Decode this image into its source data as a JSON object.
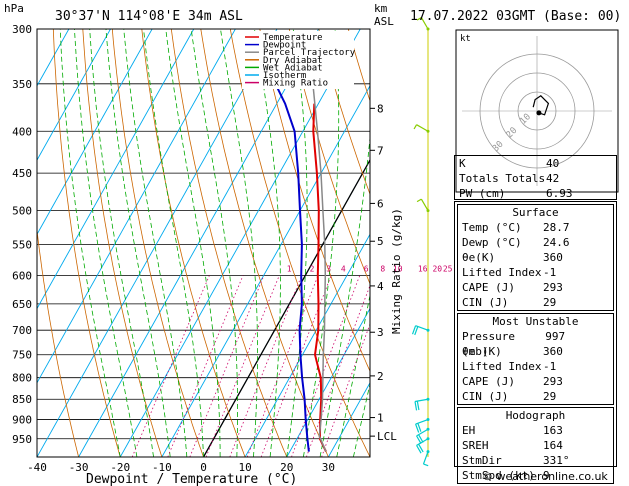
{
  "header": {
    "hpa_label": "hPa",
    "location": "30°37'N  114°08'E  34m  ASL",
    "km_label": "km",
    "asl_label": "ASL",
    "datetime": "17.07.2022  03GMT  (Base: 00)",
    "mixing_ratio_label": "Mixing Ratio (g/kg)"
  },
  "chart_data": {
    "type": "skew-t",
    "xlabel": "Dewpoint / Temperature (°C)",
    "ylabel": "hPa",
    "x_ticks": [
      -40,
      -30,
      -20,
      -10,
      0,
      10,
      20,
      30
    ],
    "xlim": [
      -40,
      40
    ],
    "pressure_levels": [
      300,
      350,
      400,
      450,
      500,
      550,
      600,
      650,
      700,
      750,
      800,
      850,
      900,
      950
    ],
    "ylim": [
      300,
      1000
    ],
    "km_ticks": [
      {
        "label": "8",
        "p": 375
      },
      {
        "label": "7",
        "p": 422
      },
      {
        "label": "6",
        "p": 490
      },
      {
        "label": "5",
        "p": 545
      },
      {
        "label": "4",
        "p": 618
      },
      {
        "label": "3",
        "p": 704
      },
      {
        "label": "2",
        "p": 796
      },
      {
        "label": "1",
        "p": 895
      },
      {
        "label": "LCL",
        "p": 943
      }
    ],
    "mixing_ratio_labels": [
      {
        "label": "1",
        "t": -3.5
      },
      {
        "label": "2",
        "t": 2
      },
      {
        "label": "3",
        "t": 6
      },
      {
        "label": "4",
        "t": 9.5
      },
      {
        "label": "6",
        "t": 15
      },
      {
        "label": "8",
        "t": 19
      },
      {
        "label": "10",
        "t": 22
      },
      {
        "label": "16",
        "t": 28
      },
      {
        "label": "20",
        "t": 31.5
      },
      {
        "label": "25",
        "t": 34
      }
    ],
    "legend": [
      {
        "label": "Temperature",
        "color": "#e00000"
      },
      {
        "label": "Dewpoint",
        "color": "#0000cc"
      },
      {
        "label": "Parcel Trajectory",
        "color": "#888888"
      },
      {
        "label": "Dry Adiabat",
        "color": "#cc6600"
      },
      {
        "label": "Wet Adiabat",
        "color": "#00aa00"
      },
      {
        "label": "Isotherm",
        "color": "#00aaee"
      },
      {
        "label": "Mixing Ratio",
        "color": "#cc0066"
      }
    ],
    "series": [
      {
        "name": "Temperature",
        "color": "#e00000",
        "points": [
          {
            "p": 985,
            "t": 28.7
          },
          {
            "p": 950,
            "t": 25.5
          },
          {
            "p": 900,
            "t": 23
          },
          {
            "p": 850,
            "t": 20.5
          },
          {
            "p": 800,
            "t": 17.5
          },
          {
            "p": 750,
            "t": 13
          },
          {
            "p": 700,
            "t": 10.5
          },
          {
            "p": 650,
            "t": 7
          },
          {
            "p": 600,
            "t": 3
          },
          {
            "p": 550,
            "t": -1
          },
          {
            "p": 500,
            "t": -5.5
          },
          {
            "p": 450,
            "t": -11
          },
          {
            "p": 400,
            "t": -17.5
          },
          {
            "p": 370,
            "t": -21
          }
        ]
      },
      {
        "name": "Dewpoint",
        "color": "#0000cc",
        "points": [
          {
            "p": 985,
            "t": 24.6
          },
          {
            "p": 950,
            "t": 22.5
          },
          {
            "p": 900,
            "t": 19.5
          },
          {
            "p": 850,
            "t": 16.5
          },
          {
            "p": 800,
            "t": 13
          },
          {
            "p": 750,
            "t": 9.5
          },
          {
            "p": 700,
            "t": 6
          },
          {
            "p": 650,
            "t": 3
          },
          {
            "p": 600,
            "t": -1
          },
          {
            "p": 550,
            "t": -5
          },
          {
            "p": 500,
            "t": -10
          },
          {
            "p": 450,
            "t": -15.5
          },
          {
            "p": 400,
            "t": -22
          },
          {
            "p": 370,
            "t": -28
          },
          {
            "p": 350,
            "t": -33
          }
        ]
      },
      {
        "name": "Parcel Trajectory",
        "color": "#888888",
        "points": [
          {
            "p": 985,
            "t": 28.7
          },
          {
            "p": 943,
            "t": 25
          },
          {
            "p": 900,
            "t": 23.2
          },
          {
            "p": 850,
            "t": 20.8
          },
          {
            "p": 800,
            "t": 18
          },
          {
            "p": 750,
            "t": 15
          },
          {
            "p": 700,
            "t": 12
          },
          {
            "p": 650,
            "t": 8.5
          },
          {
            "p": 600,
            "t": 4.8
          },
          {
            "p": 550,
            "t": 0.5
          },
          {
            "p": 500,
            "t": -4.5
          },
          {
            "p": 450,
            "t": -10
          },
          {
            "p": 400,
            "t": -16.5
          },
          {
            "p": 350,
            "t": -24
          }
        ]
      }
    ],
    "wind_barbs": [
      {
        "p": 985,
        "dir": 200,
        "kt": 5,
        "color": "#00cccc"
      },
      {
        "p": 950,
        "dir": 240,
        "kt": 10,
        "color": "#00cccc"
      },
      {
        "p": 925,
        "dir": 240,
        "kt": 10,
        "color": "#00cccc"
      },
      {
        "p": 900,
        "dir": 250,
        "kt": 10,
        "color": "#00cccc"
      },
      {
        "p": 850,
        "dir": 260,
        "kt": 10,
        "color": "#00cccc"
      },
      {
        "p": 700,
        "dir": 290,
        "kt": 10,
        "color": "#00cccc"
      },
      {
        "p": 500,
        "dir": 330,
        "kt": 5,
        "color": "#88cc00"
      },
      {
        "p": 400,
        "dir": 300,
        "kt": 5,
        "color": "#88cc00"
      },
      {
        "p": 300,
        "dir": 330,
        "kt": 5,
        "color": "#88cc00"
      }
    ]
  },
  "hodograph": {
    "unit_label": "kt",
    "ring_labels": [
      "10",
      "20",
      "30"
    ],
    "trace_kt": [
      [
        -2,
        2
      ],
      [
        -1,
        6
      ],
      [
        2,
        8
      ],
      [
        6,
        4
      ],
      [
        4,
        -2
      ],
      [
        1,
        -1
      ]
    ],
    "storm_motion_kt": [
      1,
      -1
    ]
  },
  "indices": [
    {
      "label": "K",
      "value": "40"
    },
    {
      "label": "Totals Totals",
      "value": "42"
    },
    {
      "label": "PW (cm)",
      "value": "6.93"
    }
  ],
  "surface": {
    "title": "Surface",
    "rows": [
      {
        "label": "Temp (°C)",
        "value": "28.7"
      },
      {
        "label": "Dewp (°C)",
        "value": "24.6"
      },
      {
        "label": "θe(K)",
        "value": "360"
      },
      {
        "label": "Lifted Index",
        "value": "-1"
      },
      {
        "label": "CAPE (J)",
        "value": "293"
      },
      {
        "label": "CIN (J)",
        "value": "29"
      }
    ]
  },
  "most_unstable": {
    "title": "Most Unstable",
    "rows": [
      {
        "label": "Pressure (mb)",
        "value": "997"
      },
      {
        "label": "θe (K)",
        "value": "360"
      },
      {
        "label": "Lifted Index",
        "value": "-1"
      },
      {
        "label": "CAPE (J)",
        "value": "293"
      },
      {
        "label": "CIN (J)",
        "value": "29"
      }
    ]
  },
  "hodograph_stats": {
    "title": "Hodograph",
    "rows": [
      {
        "label": "EH",
        "value": "163"
      },
      {
        "label": "SREH",
        "value": "164"
      },
      {
        "label": "StmDir",
        "value": "331°"
      },
      {
        "label": "StmSpd (kt)",
        "value": "9"
      }
    ]
  },
  "credit": "© weatheronline.co.uk"
}
